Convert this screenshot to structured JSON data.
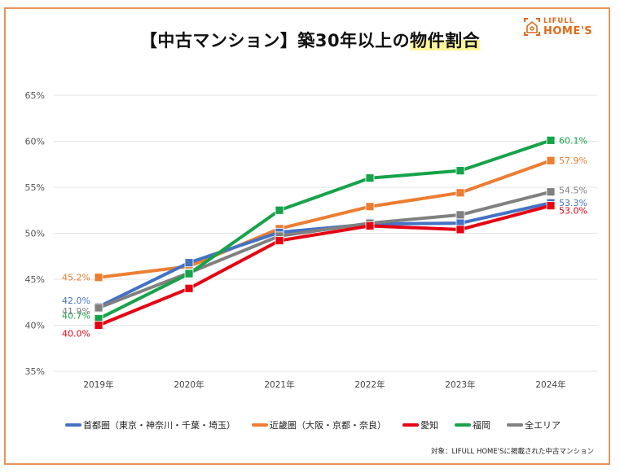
{
  "title": {
    "prefix": "【中古マンション】築30年以上の",
    "highlight": "物件割合"
  },
  "logo": {
    "line1": "LIFULL",
    "line2": "HOME'S",
    "icon": "house-icon"
  },
  "footnote": "対象：LIFULL HOME'Sに掲載された中古マンション",
  "chart_data": {
    "type": "line",
    "title": "【中古マンション】築30年以上の物件割合",
    "xlabel": "",
    "ylabel": "",
    "x": [
      "2019年",
      "2020年",
      "2021年",
      "2022年",
      "2023年",
      "2024年"
    ],
    "ylim": [
      35,
      65
    ],
    "yticks": [
      "35%",
      "40%",
      "45%",
      "50%",
      "55%",
      "60%",
      "65%"
    ],
    "ytick_values": [
      35,
      40,
      45,
      50,
      55,
      60,
      65
    ],
    "grid": true,
    "legend_position": "bottom",
    "series": [
      {
        "name": "首都圏（東京・神奈川・千葉・埼玉）",
        "color": "#4472c4",
        "values": [
          42.0,
          46.8,
          50.1,
          51.0,
          51.1,
          53.3
        ],
        "labels": {
          "0": "42.0%",
          "5": "53.3%"
        }
      },
      {
        "name": "近畿圏（大阪・京都・奈良）",
        "color": "#ed7d31",
        "values": [
          45.2,
          46.4,
          50.5,
          52.9,
          54.4,
          57.9
        ],
        "labels": {
          "0": "45.2%",
          "5": "57.9%"
        }
      },
      {
        "name": "愛知",
        "color": "#e60012",
        "values": [
          40.0,
          44.0,
          49.2,
          50.8,
          50.4,
          53.0
        ],
        "labels": {
          "0": "40.0%",
          "5": "53.0%"
        }
      },
      {
        "name": "福岡",
        "color": "#16a34a",
        "values": [
          40.7,
          45.6,
          52.5,
          56.0,
          56.8,
          60.1
        ],
        "labels": {
          "0": "40.7%",
          "5": "60.1%"
        }
      },
      {
        "name": "全エリア",
        "color": "#808080",
        "values": [
          41.9,
          45.7,
          49.7,
          51.1,
          52.0,
          54.5
        ],
        "labels": {
          "0": "41.9%",
          "5": "54.5%"
        }
      }
    ]
  }
}
